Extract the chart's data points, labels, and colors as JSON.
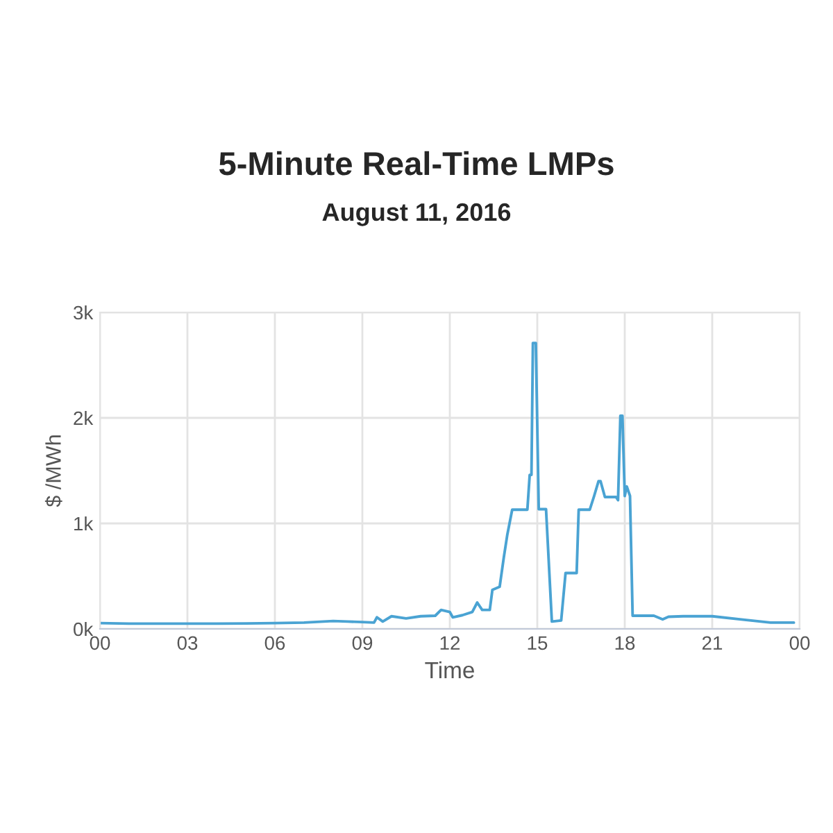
{
  "chart_data": {
    "type": "line",
    "title": "5-Minute Real-Time LMPs",
    "subtitle": "August 11, 2016",
    "xlabel": "Time",
    "ylabel": "$ /MWh",
    "x": [
      0,
      1,
      2,
      3,
      4,
      5,
      6,
      7,
      8,
      8.5,
      9,
      9.4,
      9.5,
      9.7,
      10,
      10.5,
      11,
      11.5,
      11.7,
      12,
      12.1,
      12.43,
      12.77,
      12.94,
      13.11,
      13.37,
      13.46,
      13.71,
      13.85,
      13.97,
      14.14,
      14.66,
      14.74,
      14.8,
      14.85,
      14.95,
      15.05,
      15.3,
      15.5,
      15.82,
      15.97,
      16.35,
      16.42,
      16.8,
      16.95,
      17.1,
      17.17,
      17.32,
      17.7,
      17.77,
      17.85,
      17.92,
      18.0,
      18.07,
      18.18,
      18.27,
      19.0,
      19.3,
      19.5,
      20,
      21,
      22,
      23,
      23.8
    ],
    "series": [
      {
        "color": "#4aa3d3",
        "values": [
          55,
          50,
          50,
          50,
          50,
          52,
          55,
          60,
          75,
          70,
          65,
          60,
          110,
          70,
          120,
          100,
          120,
          125,
          180,
          160,
          110,
          130,
          160,
          250,
          180,
          180,
          370,
          400,
          675,
          890,
          1130,
          1130,
          1460,
          1460,
          2710,
          2710,
          1135,
          1135,
          70,
          80,
          530,
          530,
          1130,
          1130,
          1260,
          1400,
          1400,
          1250,
          1250,
          1220,
          2020,
          2020,
          1260,
          1350,
          1260,
          125,
          125,
          90,
          115,
          120,
          120,
          90,
          60,
          60
        ]
      }
    ],
    "xlim": [
      0,
      24
    ],
    "xticks": [
      {
        "value": 0,
        "label": "00"
      },
      {
        "value": 3,
        "label": "03"
      },
      {
        "value": 6,
        "label": "06"
      },
      {
        "value": 9,
        "label": "09"
      },
      {
        "value": 12,
        "label": "12"
      },
      {
        "value": 15,
        "label": "15"
      },
      {
        "value": 18,
        "label": "18"
      },
      {
        "value": 21,
        "label": "21"
      },
      {
        "value": 24,
        "label": "00"
      }
    ],
    "ylim": [
      0,
      3000
    ],
    "yticks": [
      {
        "value": 0,
        "label": "0k"
      },
      {
        "value": 1000,
        "label": "1k"
      },
      {
        "value": 2000,
        "label": "2k"
      },
      {
        "value": 3000,
        "label": "3k"
      }
    ],
    "grid": true
  }
}
